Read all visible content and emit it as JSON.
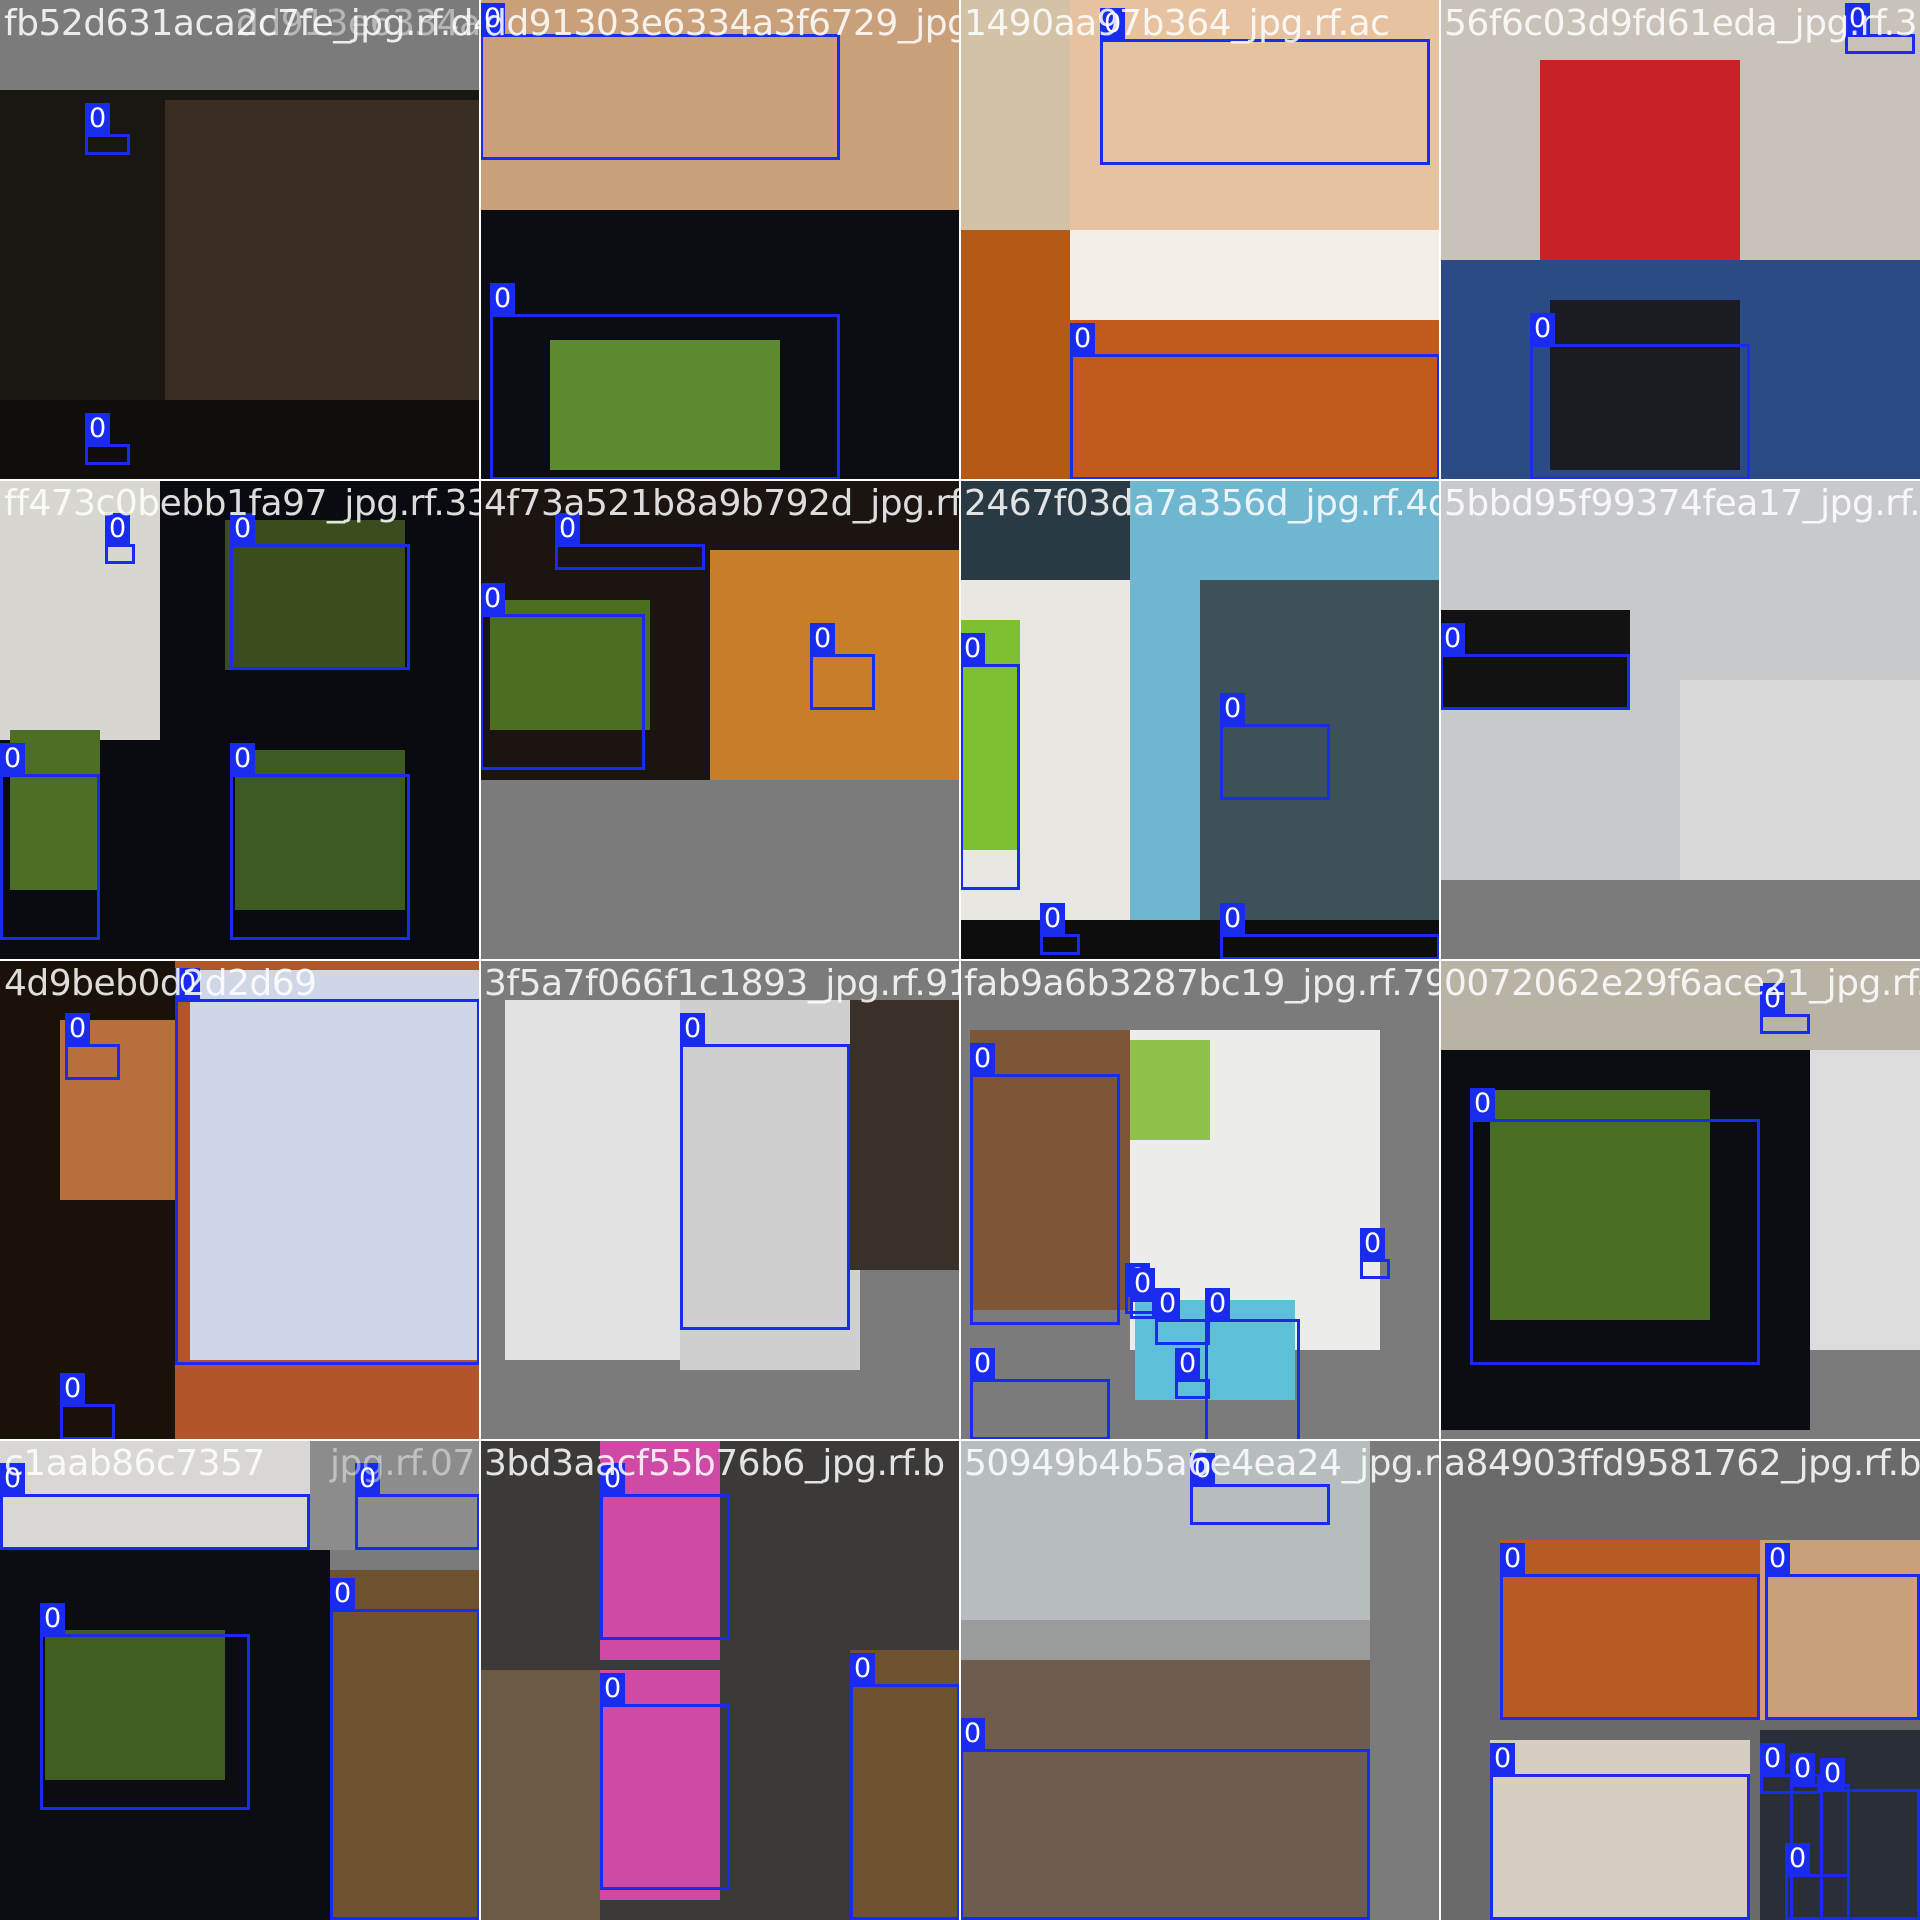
{
  "class_label": "0",
  "cells": [
    {
      "file_name": "fb52d631aca2c7fe_jpg.rf.d4",
      "overlap_name": "dd913e6334a3f6729_jpg.rf.4"
    },
    {
      "file_name": "dd91303e6334a3f6729_jpg.rf.4",
      "overlap_name": ""
    },
    {
      "file_name": "1490aa97b364_jpg.rf.ac",
      "overlap_name": ""
    },
    {
      "file_name": "56f6c03d9fd61eda_jpg.rf.3",
      "overlap_name": ""
    },
    {
      "file_name": "ff473c0bebb1fa97_jpg.rf.335",
      "overlap_name": ""
    },
    {
      "file_name": "4f73a521b8a9b792d_jpg.rf.ca",
      "overlap_name": ""
    },
    {
      "file_name": "2467f03da7a356d_jpg.rf.4d",
      "overlap_name": ""
    },
    {
      "file_name": "5bbd95f99374fea17_jpg.rf.a",
      "overlap_name": ""
    },
    {
      "file_name": "4d9beb0d2d2d69",
      "overlap_name": ""
    },
    {
      "file_name": "3f5a7f066f1c1893_jpg.rf.91",
      "overlap_name": ""
    },
    {
      "file_name": "fab9a6b3287bc19_jpg.rf.79",
      "overlap_name": ""
    },
    {
      "file_name": "0072062e29f6ace21_jpg.rf.7",
      "overlap_name": ""
    },
    {
      "file_name": "c1aab86c7357",
      "overlap_name": "jpg.rf.07"
    },
    {
      "file_name": "3bd3aacf55b76b6_jpg.rf.b",
      "overlap_name": ""
    },
    {
      "file_name": "50949b4b5a6e4ea24_jpg.rf.6c",
      "overlap_name": ""
    },
    {
      "file_name": "a84903ffd9581762_jpg.rf.b1",
      "overlap_name": ""
    }
  ]
}
